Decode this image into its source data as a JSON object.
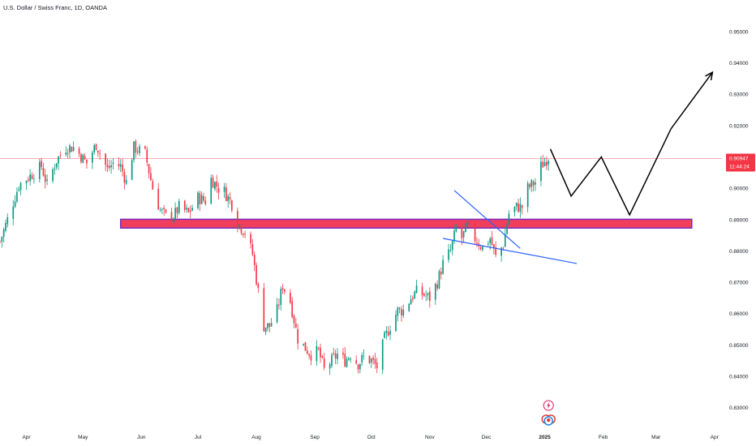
{
  "header": {
    "title": "U.S. Dollar / Swiss Franc, 1D, OANDA"
  },
  "current_price": {
    "price": "0.90947",
    "countdown": "11:44:24",
    "value": 0.90947
  },
  "colors": {
    "up": "#089981",
    "down": "#f23645",
    "zone_fill": "#f23e5d",
    "zone_border": "#7b2cbf",
    "trend_line": "#2962ff",
    "projection": "#000000",
    "price_line": "#f7a6ae"
  },
  "icons": [
    "lightning-icon",
    "flags-icon"
  ],
  "chart_data": {
    "type": "candlestick",
    "title": "U.S. Dollar / Swiss Franc, 1D, OANDA",
    "ylim": [
      0.825,
      0.958
    ],
    "y_ticks": [
      "0.95000",
      "0.94000",
      "0.93000",
      "0.92000",
      "0.91000",
      "0.90000",
      "0.89000",
      "0.88000",
      "0.87000",
      "0.86000",
      "0.85000",
      "0.84000",
      "0.83000"
    ],
    "x_ticks": [
      "Apr",
      "May",
      "Jun",
      "Jul",
      "Aug",
      "Sep",
      "Oct",
      "Nov",
      "Dec",
      "2025",
      "Feb",
      "Mar",
      "Apr"
    ],
    "x_tick_dates": [
      "2024-04-01",
      "2024-05-01",
      "2024-06-01",
      "2024-07-01",
      "2024-08-01",
      "2024-09-01",
      "2024-10-01",
      "2024-11-01",
      "2024-12-01",
      "2025-01-01",
      "2025-02-01",
      "2025-03-01",
      "2025-04-01"
    ],
    "x_range": [
      "2024-03-18",
      "2025-04-05"
    ],
    "grid": false,
    "anchors": [
      [
        "2024-03-18",
        0.883
      ],
      [
        "2024-03-22",
        0.89
      ],
      [
        "2024-03-28",
        0.901
      ],
      [
        "2024-04-03",
        0.904
      ],
      [
        "2024-04-09",
        0.907
      ],
      [
        "2024-04-12",
        0.901
      ],
      [
        "2024-04-17",
        0.909
      ],
      [
        "2024-04-22",
        0.913
      ],
      [
        "2024-04-26",
        0.913
      ],
      [
        "2024-04-29",
        0.911
      ],
      [
        "2024-05-03",
        0.908
      ],
      [
        "2024-05-08",
        0.914
      ],
      [
        "2024-05-14",
        0.906
      ],
      [
        "2024-05-17",
        0.908
      ],
      [
        "2024-05-21",
        0.907
      ],
      [
        "2024-05-24",
        0.902
      ],
      [
        "2024-05-28",
        0.913
      ],
      [
        "2024-06-03",
        0.911
      ],
      [
        "2024-06-07",
        0.9
      ],
      [
        "2024-06-11",
        0.893
      ],
      [
        "2024-06-14",
        0.891
      ],
      [
        "2024-06-18",
        0.891
      ],
      [
        "2024-06-21",
        0.894
      ],
      [
        "2024-06-26",
        0.892
      ],
      [
        "2024-07-01",
        0.897
      ],
      [
        "2024-07-05",
        0.896
      ],
      [
        "2024-07-08",
        0.903
      ],
      [
        "2024-07-12",
        0.9
      ],
      [
        "2024-07-15",
        0.899
      ],
      [
        "2024-07-19",
        0.895
      ],
      [
        "2024-07-22",
        0.889
      ],
      [
        "2024-07-26",
        0.886
      ],
      [
        "2024-07-30",
        0.879
      ],
      [
        "2024-08-02",
        0.867
      ],
      [
        "2024-08-05",
        0.856
      ],
      [
        "2024-08-08",
        0.856
      ],
      [
        "2024-08-12",
        0.861
      ],
      [
        "2024-08-15",
        0.869
      ],
      [
        "2024-08-19",
        0.864
      ],
      [
        "2024-08-23",
        0.852
      ],
      [
        "2024-08-27",
        0.849
      ],
      [
        "2024-08-30",
        0.847
      ],
      [
        "2024-09-03",
        0.848
      ],
      [
        "2024-09-06",
        0.842
      ],
      [
        "2024-09-10",
        0.845
      ],
      [
        "2024-09-13",
        0.847
      ],
      [
        "2024-09-17",
        0.845
      ],
      [
        "2024-09-20",
        0.847
      ],
      [
        "2024-09-24",
        0.844
      ],
      [
        "2024-09-27",
        0.846
      ],
      [
        "2024-10-01",
        0.845
      ],
      [
        "2024-10-04",
        0.843
      ],
      [
        "2024-10-08",
        0.852
      ],
      [
        "2024-10-11",
        0.856
      ],
      [
        "2024-10-15",
        0.861
      ],
      [
        "2024-10-18",
        0.861
      ],
      [
        "2024-10-22",
        0.865
      ],
      [
        "2024-10-25",
        0.867
      ],
      [
        "2024-10-29",
        0.866
      ],
      [
        "2024-11-01",
        0.865
      ],
      [
        "2024-11-05",
        0.87
      ],
      [
        "2024-11-08",
        0.876
      ],
      [
        "2024-11-12",
        0.88
      ],
      [
        "2024-11-15",
        0.887
      ],
      [
        "2024-11-18",
        0.884
      ],
      [
        "2024-11-21",
        0.888
      ],
      [
        "2024-11-25",
        0.884
      ],
      [
        "2024-11-29",
        0.881
      ],
      [
        "2024-12-03",
        0.884
      ],
      [
        "2024-12-06",
        0.878
      ],
      [
        "2024-12-10",
        0.882
      ],
      [
        "2024-12-13",
        0.892
      ],
      [
        "2024-12-17",
        0.894
      ],
      [
        "2024-12-20",
        0.894
      ],
      [
        "2024-12-23",
        0.9
      ],
      [
        "2024-12-27",
        0.902
      ],
      [
        "2024-12-30",
        0.907
      ],
      [
        "2025-01-03",
        0.91
      ]
    ],
    "annotations": {
      "zone": {
        "from": "2024-05-21",
        "to": "2025-03-20",
        "top": 0.8901,
        "bottom": 0.8873
      },
      "channel_upper": [
        [
          "2024-11-14",
          0.8993
        ],
        [
          "2024-12-19",
          0.8808
        ]
      ],
      "channel_lower": [
        [
          "2024-11-08",
          0.884
        ],
        [
          "2025-01-18",
          0.876
        ]
      ],
      "projection": [
        [
          "2025-01-04",
          0.9125
        ],
        [
          "2025-01-15",
          0.8975
        ],
        [
          "2025-01-31",
          0.91
        ],
        [
          "2025-02-15",
          0.8915
        ],
        [
          "2025-03-09",
          0.919
        ],
        [
          "2025-03-31",
          0.937
        ]
      ]
    }
  }
}
